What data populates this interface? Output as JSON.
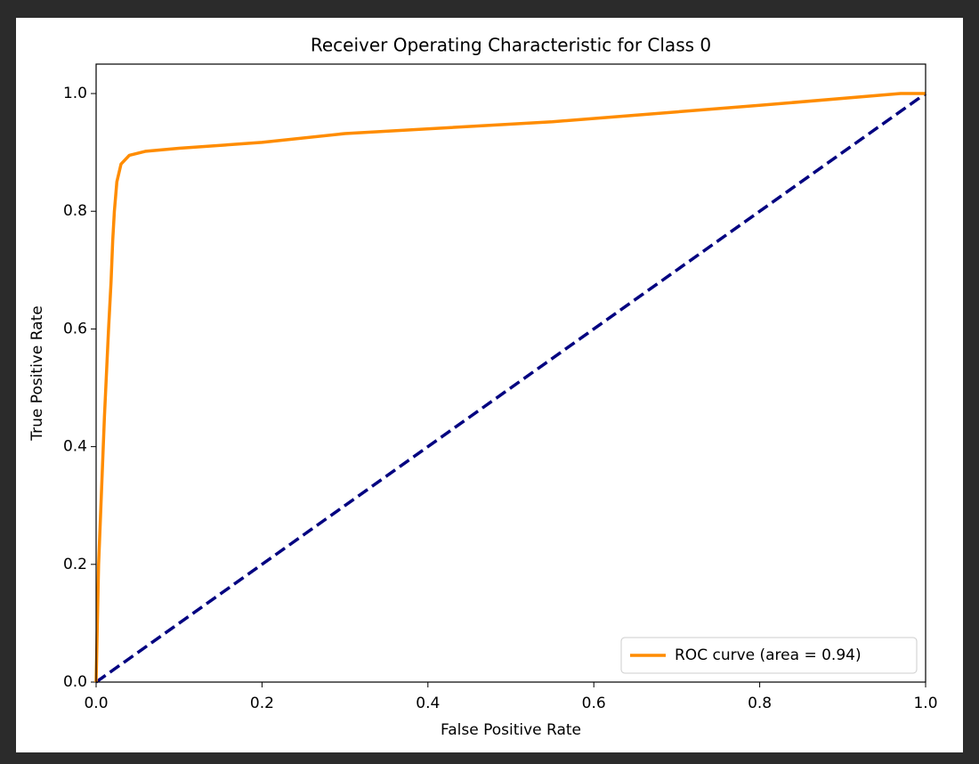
{
  "chart_data": {
    "type": "line",
    "title": "Receiver Operating Characteristic for Class 0",
    "xlabel": "False Positive Rate",
    "ylabel": "True Positive Rate",
    "xlim": [
      0,
      1
    ],
    "ylim": [
      0,
      1.05
    ],
    "xticks": [
      {
        "value": 0,
        "label": "0.0"
      },
      0.2,
      0.4,
      0.6,
      0.8,
      {
        "value": 1,
        "label": "1.0"
      }
    ],
    "yticks": [
      {
        "value": 0,
        "label": "0.0"
      },
      0.2,
      0.4,
      0.6,
      0.8,
      {
        "value": 1,
        "label": "1.0"
      }
    ],
    "legend": "lower right",
    "series": [
      {
        "name": "ROC curve (area = 0.94)",
        "color": "#ff8c00",
        "dash": "solid",
        "x": [
          0,
          0.003,
          0.01,
          0.015,
          0.018,
          0.02,
          0.022,
          0.025,
          0.03,
          0.04,
          0.06,
          0.1,
          0.15,
          0.2,
          0.3,
          0.55,
          0.8,
          0.97,
          1
        ],
        "values": [
          0,
          0.2,
          0.45,
          0.6,
          0.68,
          0.75,
          0.8,
          0.85,
          0.88,
          0.895,
          0.902,
          0.907,
          0.912,
          0.917,
          0.932,
          0.952,
          0.98,
          1,
          1
        ]
      },
      {
        "color": "#000080",
        "dash": "dashed",
        "x": [
          0,
          1
        ],
        "values": [
          0,
          1
        ]
      }
    ]
  }
}
